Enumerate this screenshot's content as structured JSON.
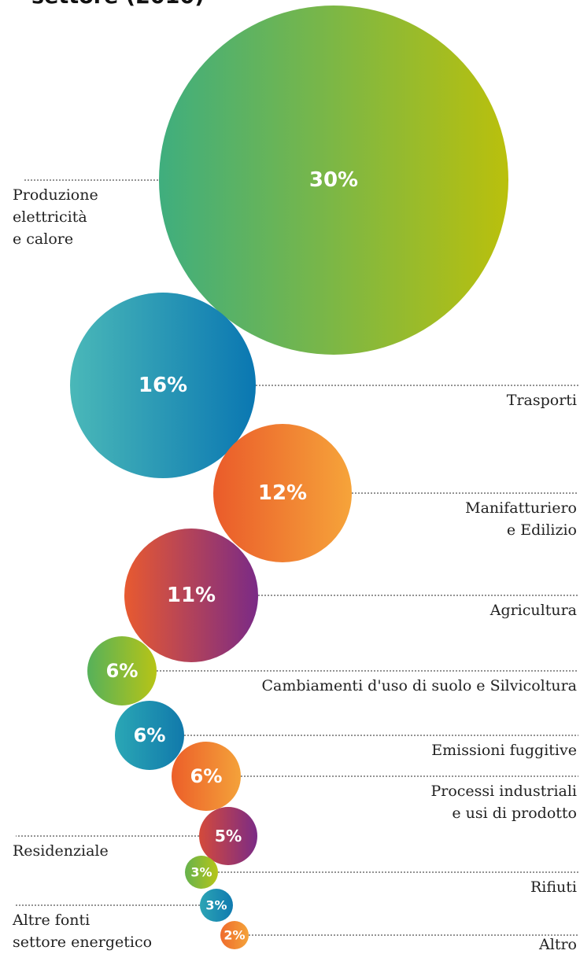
{
  "chart_data": {
    "type": "bubble",
    "title": "settore (2010)",
    "unit": "%",
    "items": [
      {
        "label_lines": [
          "Produzione",
          "elettricità",
          "e calore"
        ],
        "value": 30,
        "display": "30%",
        "colors": [
          "#3fae7e",
          "#bac00c"
        ],
        "icon": "circle"
      },
      {
        "label_lines": [
          "Trasporti"
        ],
        "value": 16,
        "display": "16%",
        "colors": [
          "#4ab8b8",
          "#0a77b2"
        ],
        "icon": "circle"
      },
      {
        "label_lines": [
          "Manifatturiero",
          "e Edilizio"
        ],
        "value": 12,
        "display": "12%",
        "colors": [
          "#ea5b2a",
          "#f6a43a"
        ],
        "icon": "circle"
      },
      {
        "label_lines": [
          "Agricultura"
        ],
        "value": 11,
        "display": "11%",
        "colors": [
          "#e85a30",
          "#7a2a86"
        ],
        "icon": "circle"
      },
      {
        "label_lines": [
          "Cambiamenti d'uso di suolo e Silvicoltura"
        ],
        "value": 6,
        "display": "6%",
        "colors": [
          "#56b15a",
          "#b7c416"
        ],
        "icon": "circle"
      },
      {
        "label_lines": [
          "Emissioni fuggitive"
        ],
        "value": 6,
        "display": "6%",
        "colors": [
          "#2aa7b5",
          "#1179ab"
        ],
        "icon": "circle"
      },
      {
        "label_lines": [
          "Processi industriali",
          "e usi di prodotto"
        ],
        "value": 6,
        "display": "6%",
        "colors": [
          "#ec5e29",
          "#f4a23a"
        ],
        "icon": "circle"
      },
      {
        "label_lines": [
          "Residenziale"
        ],
        "value": 5,
        "display": "5%",
        "colors": [
          "#d44a3b",
          "#7b2b86"
        ],
        "icon": "circle"
      },
      {
        "label_lines": [
          "Rifiuti"
        ],
        "value": 3,
        "display": "3%",
        "colors": [
          "#66b24d",
          "#b6c519"
        ],
        "icon": "circle"
      },
      {
        "label_lines": [
          "Altre fonti",
          "settore energetico"
        ],
        "value": 3,
        "display": "3%",
        "colors": [
          "#2ca4b4",
          "#107bb0"
        ],
        "icon": "circle"
      },
      {
        "label_lines": [
          "Altro"
        ],
        "value": 2,
        "display": "2%",
        "colors": [
          "#ef6b2c",
          "#f4a33a"
        ],
        "icon": "circle"
      }
    ]
  }
}
